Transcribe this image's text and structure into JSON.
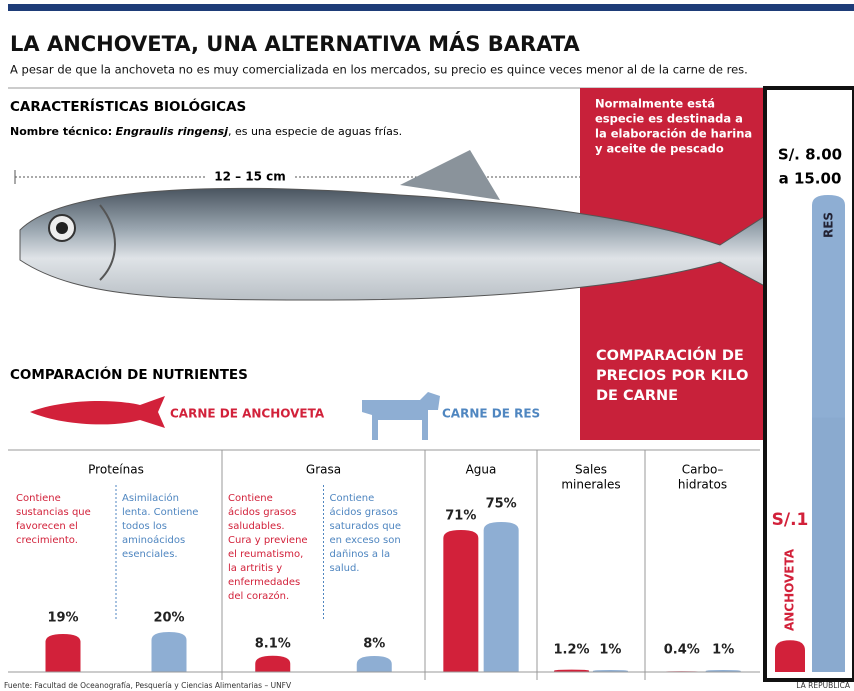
{
  "header": {
    "title": "LA ANCHOVETA, UNA ALTERNATIVA MÁS BARATA",
    "subtitle": "A pesar de que la anchoveta no es muy comercializada en los mercados, su precio es quince veces menor al de la carne de res."
  },
  "biology": {
    "heading": "CARACTERÍSTICAS BIOLÓGICAS",
    "technical_label": "Nombre técnico:",
    "technical_name": "Engraulis ringensj",
    "technical_rest": ", es una especie de aguas frías.",
    "length": "12 – 15 cm"
  },
  "note": [
    "Normalmente está",
    "especie es destinada a",
    "la elaboración de harina",
    "y aceite de pescado"
  ],
  "price_heading": [
    "COMPARACIÓN DE",
    "PRECIOS POR KILO",
    "DE CARNE"
  ],
  "prices": {
    "res": {
      "name": "RES",
      "label": [
        "S/. 8.00",
        "a 15.00"
      ],
      "low": 8,
      "high": 15
    },
    "anchoveta": {
      "name": "ANCHOVETA",
      "label": "S/.1",
      "value": 1
    }
  },
  "nutrients": {
    "heading": "COMPARACIÓN DE NUTRIENTES",
    "legend": [
      "CARNE DE ANCHOVETA",
      "CARNE DE RES"
    ],
    "colors": [
      "#d2213a",
      "#8eaed3"
    ],
    "groups": [
      {
        "name": [
          "Proteínas"
        ],
        "values": [
          19,
          20
        ],
        "value_labels": [
          "19%",
          "20%"
        ],
        "notes": [
          [
            "Contiene",
            "sustancias que",
            "favorecen el",
            "crecimiento."
          ],
          [
            "Asimilación",
            "lenta. Contiene",
            "todos los",
            "aminoácidos",
            "esenciales."
          ]
        ]
      },
      {
        "name": [
          "Grasa"
        ],
        "values": [
          8.1,
          8
        ],
        "value_labels": [
          "8.1%",
          "8%"
        ],
        "notes": [
          [
            "Contiene",
            "ácidos grasos",
            "saludables.",
            "Cura y previene",
            "el reumatismo,",
            "la artritis y",
            "enfermedades",
            "del corazón."
          ],
          [
            "Contiene",
            "ácidos grasos",
            "saturados que",
            "en exceso son",
            "dañinos a la",
            "salud."
          ]
        ]
      },
      {
        "name": [
          "Agua"
        ],
        "values": [
          71,
          75
        ],
        "value_labels": [
          "71%",
          "75%"
        ]
      },
      {
        "name": [
          "Sales",
          "minerales"
        ],
        "values": [
          1.2,
          1
        ],
        "value_labels": [
          "1.2%",
          "1%"
        ]
      },
      {
        "name": [
          "Carbo–",
          "hidratos"
        ],
        "values": [
          0.4,
          1
        ],
        "value_labels": [
          "0.4%",
          "1%"
        ]
      }
    ]
  },
  "source": "Fuente: Facultad de Oceanografía, Pesquería y Ciencias Alimentarias – UNFV",
  "credit": "LA REPÚBLICA"
}
